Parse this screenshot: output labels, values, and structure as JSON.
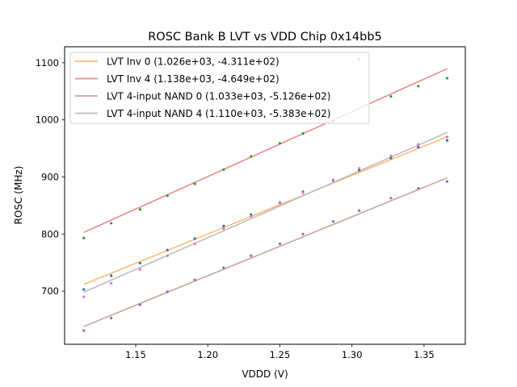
{
  "chart_data": {
    "type": "scatter",
    "title": "ROSC Bank B LVT vs VDD Chip 0x14bb5",
    "xlabel": "VDDD (V)",
    "ylabel": "ROSC (MHz)",
    "xlim": [
      1.1007,
      1.3786
    ],
    "ylim": [
      607,
      1128
    ],
    "xticks": [
      1.15,
      1.2,
      1.25,
      1.3,
      1.35
    ],
    "xtick_labels": [
      "1.15",
      "1.20",
      "1.25",
      "1.30",
      "1.35"
    ],
    "yticks": [
      700,
      800,
      900,
      1000,
      1100
    ],
    "ytick_labels": [
      "700",
      "800",
      "900",
      "1000",
      "1100"
    ],
    "grid": false,
    "legend_position": "top-left",
    "x": [
      1.114,
      1.133,
      1.153,
      1.172,
      1.191,
      1.211,
      1.23,
      1.25,
      1.266,
      1.287,
      1.305,
      1.327,
      1.346,
      1.366
    ],
    "series": [
      {
        "name": "LVT Inv 0 data",
        "kind": "points",
        "color": "#1f77b4",
        "values": [
          703,
          727,
          749,
          772,
          792,
          814,
          834,
          855,
          874,
          894,
          912,
          933,
          952,
          964
        ]
      },
      {
        "name": "LVT Inv 4 data",
        "kind": "points",
        "color": "#2ca02c",
        "values": [
          793,
          819,
          843,
          867,
          888,
          913,
          936,
          959,
          976,
          998,
          1106,
          1041,
          1059,
          1073
        ]
      },
      {
        "name": "LVT 4-input NAND 0 data",
        "kind": "points",
        "color": "#9467bd",
        "values": [
          631,
          653,
          676,
          699,
          720,
          741,
          762,
          783,
          800,
          822,
          841,
          863,
          880,
          892
        ]
      },
      {
        "name": "LVT 4-input NAND 4 data",
        "kind": "points",
        "color": "#e377c2",
        "values": [
          690,
          714,
          738,
          762,
          783,
          809,
          831,
          854,
          872,
          895,
          915,
          937,
          957,
          970
        ]
      }
    ],
    "fits": [
      {
        "label": "LVT Inv 0 (1.026e+03, -4.311e+02)",
        "slope": 1026,
        "intercept": -431.1,
        "color": "#ffbb78"
      },
      {
        "label": "LVT Inv 4 (1.138e+03, -4.649e+02)",
        "slope": 1138,
        "intercept": -464.9,
        "color": "#e88a8a"
      },
      {
        "label": "LVT 4-input NAND 0 (1.033e+03, -5.126e+02)",
        "slope": 1033,
        "intercept": -512.6,
        "color": "#c4a59d"
      },
      {
        "label": "LVT 4-input NAND 4 (1.110e+03, -5.383e+02)",
        "slope": 1110,
        "intercept": -538.3,
        "color": "#bdbdbd"
      }
    ]
  }
}
